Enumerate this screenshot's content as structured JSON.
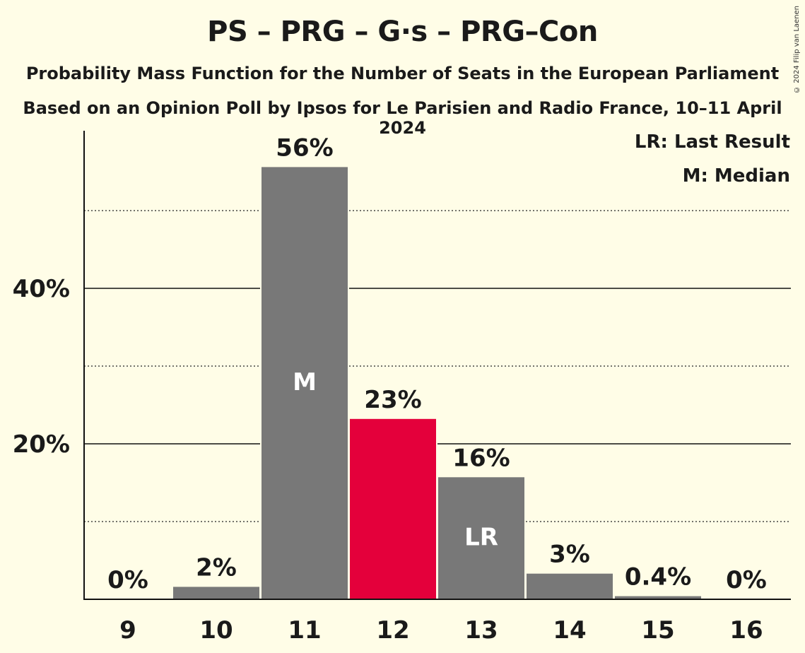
{
  "title": "PS – PRG – G·s – PRG–Con",
  "subtitle1": "Probability Mass Function for the Number of Seats in the European Parliament",
  "subtitle2": "Based on an Opinion Poll by Ipsos for Le Parisien and Radio France, 10–11 April 2024",
  "copyright": "© 2024 Filip van Laenen",
  "legend": [
    "LR: Last Result",
    "M: Median"
  ],
  "colors": {
    "bar": "#787878",
    "highlight": "#E4003B",
    "background": "#FFFDE7"
  },
  "chart_data": {
    "type": "bar",
    "categories": [
      "9",
      "10",
      "11",
      "12",
      "13",
      "14",
      "15",
      "16"
    ],
    "values": [
      0,
      1.6,
      55.6,
      23.2,
      15.7,
      3.3,
      0.4,
      0
    ],
    "data_labels": [
      "0%",
      "2%",
      "56%",
      "23%",
      "16%",
      "3%",
      "0.4%",
      "0%"
    ],
    "bar_marks": [
      "",
      "",
      "M",
      "",
      "LR",
      "",
      "",
      ""
    ],
    "highlight_category": "12",
    "ylim": [
      0,
      60
    ],
    "yticks_labeled": [
      20,
      40
    ],
    "ytick_labels": [
      "20%",
      "40%"
    ],
    "yticks_minor": [
      10,
      30,
      50
    ],
    "grid": true,
    "legend_position": "top-right"
  }
}
